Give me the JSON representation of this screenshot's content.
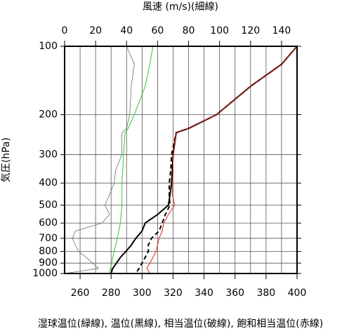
{
  "chart_data": {
    "type": "profile",
    "title": "風速 (m/s)(細線)",
    "ylabel": "気圧(hPa)",
    "caption": "湿球温位(緑線), 温位(黒線), 相当温位(破線), 飽和相当温位(赤線)",
    "pressure": [
      100,
      120,
      150,
      200,
      230,
      240,
      300,
      350,
      400,
      450,
      500,
      550,
      600,
      650,
      700,
      750,
      800,
      850,
      900,
      950,
      1000
    ],
    "ylim": [
      100,
      1000
    ],
    "ylog": true,
    "yticks": [
      100,
      200,
      300,
      400,
      500,
      600,
      700,
      800,
      900,
      1000
    ],
    "xlim": [
      250,
      400
    ],
    "xticks": [
      260,
      280,
      300,
      320,
      340,
      360,
      380,
      400
    ],
    "x2lim": [
      0,
      150
    ],
    "x2ticks": [
      0,
      20,
      40,
      60,
      80,
      100,
      120,
      140
    ],
    "grid": true,
    "series": [
      {
        "color": "#5a7a5a",
        "axis": "x2",
        "width": 0.8,
        "values": [
          40,
          45,
          43,
          42,
          40,
          37,
          37,
          33,
          32,
          29,
          26,
          29,
          24,
          7,
          5,
          7,
          9,
          14,
          18,
          22,
          0
        ]
      },
      {
        "color": "#2ecc2e",
        "width": 1,
        "values": [
          307,
          305,
          302,
          295,
          291,
          289,
          288,
          287.5,
          287,
          287,
          287,
          286.5,
          286,
          285,
          284,
          283,
          282,
          281,
          280.5,
          279.5,
          279
        ]
      },
      {
        "color": "#000000",
        "width": 2,
        "values": [
          400,
          390,
          370,
          348,
          330,
          322,
          320,
          319.5,
          319,
          318,
          317,
          310,
          302,
          300,
          296,
          293,
          289.5,
          286,
          283.5,
          281,
          280
        ]
      },
      {
        "color": "#000000",
        "width": 2,
        "dash": true,
        "values": [
          400,
          390,
          370,
          348,
          330,
          322,
          319,
          318.5,
          317.5,
          317.5,
          318,
          315,
          313,
          311,
          306,
          304,
          304,
          302,
          300,
          298,
          296
        ]
      },
      {
        "color": "#e0261b",
        "width": 1,
        "values": [
          400,
          390,
          370,
          348,
          330,
          322,
          320,
          320,
          319.5,
          319.5,
          321,
          317,
          314,
          313,
          311,
          310,
          309,
          307,
          305,
          303,
          305
        ]
      }
    ]
  }
}
